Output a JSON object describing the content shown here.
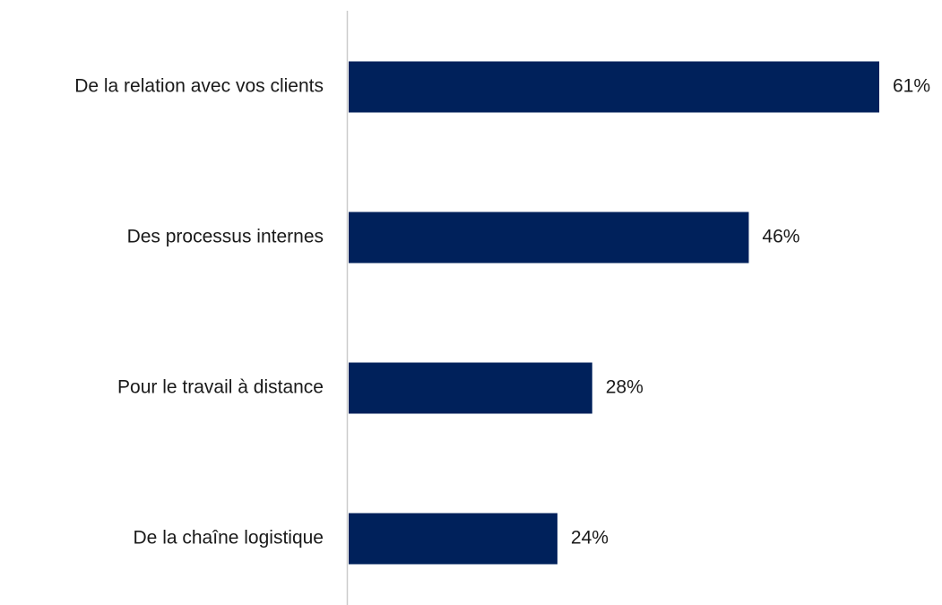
{
  "chart_data": {
    "type": "bar",
    "orientation": "horizontal",
    "categories": [
      "De la relation avec vos clients",
      "Des processus internes",
      "Pour le travail à distance",
      "De la chaîne logistique"
    ],
    "values": [
      61,
      46,
      28,
      24
    ],
    "value_labels": [
      "61%",
      "46%",
      "28%",
      "24%"
    ],
    "color": "#00215b"
  }
}
